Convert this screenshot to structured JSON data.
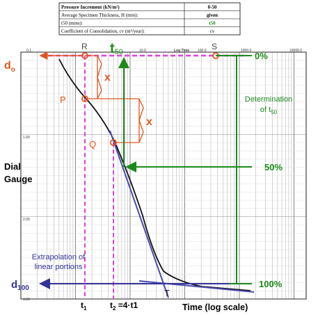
{
  "table": {
    "rows": [
      [
        "Pressure Increment (kN/m²)",
        "0-50"
      ],
      [
        "Average Specimen Thickness, H (mm):",
        "given"
      ],
      [
        "t50 (mins):",
        "t50"
      ],
      [
        "Coefficient of Consolidation, cv (m²/year):",
        "cv"
      ]
    ]
  },
  "axis": {
    "title": "Log Time",
    "x_labels": [
      "0.1",
      "10.0",
      "100.0",
      "1000.0",
      "10000.0"
    ],
    "y_labels": [
      "1.00",
      "2.00",
      "3.00"
    ]
  },
  "labels": {
    "d0": {
      "main": "d",
      "sub": "o"
    },
    "R": "R",
    "S": "S",
    "P": "P",
    "Q": "Q",
    "T": "T",
    "x1": "x",
    "x2": "x",
    "t50": {
      "main": "t",
      "sub": "50"
    },
    "p0": "0%",
    "p50": "50%",
    "p100": "100%",
    "determination": [
      "Determination",
      "of t",
      "50"
    ],
    "dial": [
      "Dial",
      "Gauge"
    ],
    "extrapolation": [
      "Extrapolation of",
      "linear portions"
    ],
    "d100": {
      "main": "d",
      "sub": "100"
    },
    "t1": {
      "main": "t",
      "sub": "1"
    },
    "t2": {
      "main": "t",
      "sub": "2",
      "rest": " =4·t1"
    },
    "time": "Time (log scale)"
  }
}
